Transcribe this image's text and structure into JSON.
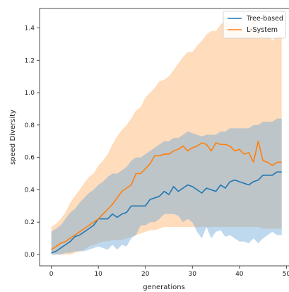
{
  "chart_data": {
    "type": "line",
    "xlabel": "generations",
    "ylabel": "speed Diversity",
    "xlim": [
      -2.5,
      51
    ],
    "ylim": [
      -0.07,
      1.52
    ],
    "xticks": [
      0,
      10,
      20,
      30,
      40,
      50
    ],
    "yticks": [
      0.0,
      0.2,
      0.4,
      0.6,
      0.8,
      1.0,
      1.2,
      1.4
    ],
    "ytick_labels": [
      "0.0",
      "0.2",
      "0.4",
      "0.6",
      "0.8",
      "1.0",
      "1.2",
      "1.4"
    ],
    "grid": false,
    "legend_position": "top-right",
    "x": [
      0,
      1,
      2,
      3,
      4,
      5,
      6,
      7,
      8,
      9,
      10,
      11,
      12,
      13,
      14,
      15,
      16,
      17,
      18,
      19,
      20,
      21,
      22,
      23,
      24,
      25,
      26,
      27,
      28,
      29,
      30,
      31,
      32,
      33,
      34,
      35,
      36,
      37,
      38,
      39,
      40,
      41,
      42,
      43,
      44,
      45,
      46,
      47,
      48,
      49
    ],
    "series": [
      {
        "name": "Tree-based",
        "color": "#1f77b4",
        "band_color": "#aed0e8",
        "mean": [
          0.01,
          0.02,
          0.04,
          0.06,
          0.08,
          0.11,
          0.12,
          0.14,
          0.16,
          0.18,
          0.22,
          0.22,
          0.22,
          0.25,
          0.23,
          0.25,
          0.26,
          0.3,
          0.3,
          0.3,
          0.3,
          0.34,
          0.35,
          0.36,
          0.39,
          0.37,
          0.42,
          0.39,
          0.41,
          0.43,
          0.42,
          0.4,
          0.38,
          0.41,
          0.4,
          0.39,
          0.43,
          0.41,
          0.45,
          0.46,
          0.45,
          0.44,
          0.43,
          0.45,
          0.46,
          0.49,
          0.49,
          0.49,
          0.51,
          0.51
        ],
        "upper": [
          0.14,
          0.16,
          0.18,
          0.22,
          0.26,
          0.28,
          0.32,
          0.35,
          0.38,
          0.4,
          0.43,
          0.45,
          0.48,
          0.5,
          0.5,
          0.52,
          0.54,
          0.58,
          0.6,
          0.6,
          0.62,
          0.64,
          0.66,
          0.68,
          0.7,
          0.7,
          0.72,
          0.72,
          0.74,
          0.76,
          0.75,
          0.74,
          0.73,
          0.74,
          0.74,
          0.74,
          0.76,
          0.76,
          0.78,
          0.78,
          0.78,
          0.78,
          0.78,
          0.8,
          0.8,
          0.82,
          0.82,
          0.82,
          0.84,
          0.84
        ],
        "lower": [
          0.0,
          0.0,
          0.0,
          0.01,
          0.01,
          0.02,
          0.02,
          0.02,
          0.03,
          0.04,
          0.05,
          0.04,
          0.03,
          0.06,
          0.03,
          0.06,
          0.05,
          0.1,
          0.12,
          0.18,
          0.18,
          0.2,
          0.2,
          0.22,
          0.25,
          0.25,
          0.25,
          0.24,
          0.2,
          0.22,
          0.2,
          0.14,
          0.1,
          0.17,
          0.1,
          0.14,
          0.15,
          0.11,
          0.12,
          0.1,
          0.08,
          0.08,
          0.07,
          0.1,
          0.07,
          0.1,
          0.12,
          0.14,
          0.12,
          0.12
        ]
      },
      {
        "name": "L-System",
        "color": "#ff7f0e",
        "band_color": "#ffd3ad",
        "mean": [
          0.03,
          0.05,
          0.07,
          0.08,
          0.1,
          0.12,
          0.14,
          0.16,
          0.18,
          0.2,
          0.22,
          0.25,
          0.28,
          0.31,
          0.35,
          0.39,
          0.41,
          0.43,
          0.5,
          0.5,
          0.53,
          0.56,
          0.61,
          0.61,
          0.62,
          0.62,
          0.64,
          0.65,
          0.67,
          0.64,
          0.66,
          0.67,
          0.69,
          0.68,
          0.64,
          0.69,
          0.68,
          0.68,
          0.67,
          0.64,
          0.65,
          0.62,
          0.63,
          0.57,
          0.7,
          0.58,
          0.57,
          0.55,
          0.57,
          0.57
        ],
        "upper": [
          0.17,
          0.19,
          0.22,
          0.26,
          0.32,
          0.36,
          0.4,
          0.44,
          0.48,
          0.5,
          0.55,
          0.58,
          0.62,
          0.68,
          0.73,
          0.77,
          0.8,
          0.84,
          0.89,
          0.91,
          0.97,
          1.0,
          1.03,
          1.07,
          1.08,
          1.1,
          1.14,
          1.18,
          1.22,
          1.25,
          1.25,
          1.29,
          1.32,
          1.36,
          1.38,
          1.38,
          1.42,
          1.45,
          1.42,
          1.44,
          1.42,
          1.37,
          1.37,
          1.47,
          1.38,
          1.34,
          1.37,
          1.32,
          1.35,
          1.35
        ],
        "lower": [
          0.0,
          0.0,
          0.0,
          0.0,
          0.0,
          0.01,
          0.02,
          0.03,
          0.05,
          0.06,
          0.07,
          0.08,
          0.08,
          0.09,
          0.09,
          0.09,
          0.1,
          0.11,
          0.12,
          0.13,
          0.14,
          0.15,
          0.15,
          0.16,
          0.17,
          0.17,
          0.17,
          0.17,
          0.17,
          0.17,
          0.17,
          0.17,
          0.17,
          0.17,
          0.17,
          0.17,
          0.17,
          0.17,
          0.17,
          0.17,
          0.17,
          0.17,
          0.17,
          0.17,
          0.17,
          0.16,
          0.16,
          0.16,
          0.16,
          0.16
        ]
      }
    ]
  }
}
